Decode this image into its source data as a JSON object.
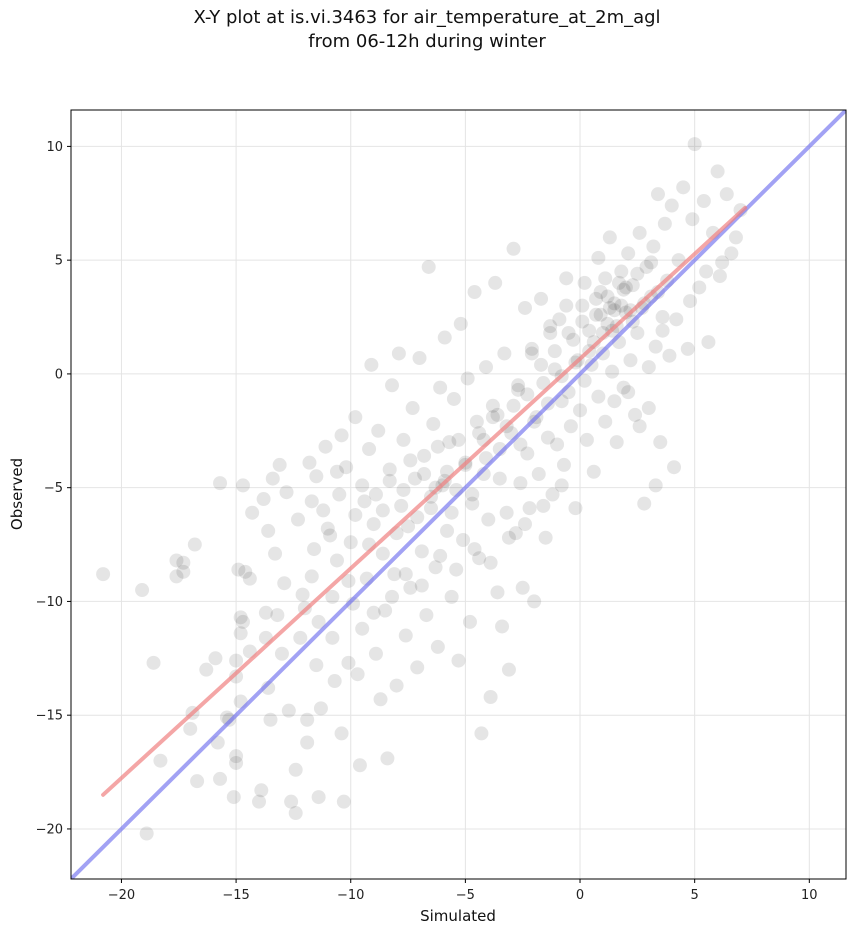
{
  "chart_data": {
    "type": "scatter",
    "title": "X-Y plot at is.vi.3463 for air_temperature_at_2m_agl",
    "subtitle": "from 06-12h during winter",
    "xlabel": "Simulated",
    "ylabel": "Observed",
    "xlim": [
      -22.2,
      11.6
    ],
    "ylim": [
      -22.2,
      11.6
    ],
    "xticks": [
      -20,
      -15,
      -10,
      -5,
      0,
      5,
      10
    ],
    "yticks": [
      -20,
      -15,
      -10,
      -5,
      0,
      5,
      10
    ],
    "xtick_labels": [
      "−20",
      "−15",
      "−10",
      "−5",
      "0",
      "5",
      "10"
    ],
    "ytick_labels": [
      "−20",
      "−15",
      "−10",
      "−5",
      "0",
      "5",
      "10"
    ],
    "grid": true,
    "point_color": "#000000",
    "point_opacity": 0.1,
    "fit_line": {
      "x": [
        -20.8,
        7.2
      ],
      "y": [
        -18.5,
        7.3
      ],
      "color": "#f08080"
    },
    "one_to_one_line": {
      "x": [
        -22.2,
        11.6
      ],
      "y": [
        -22.2,
        11.6
      ],
      "color": "#7070ee"
    },
    "points": [
      [
        -20.8,
        -8.8
      ],
      [
        -19.1,
        -9.5
      ],
      [
        -18.9,
        -20.2
      ],
      [
        -18.6,
        -12.7
      ],
      [
        -18.3,
        -17.0
      ],
      [
        -17.6,
        -8.2
      ],
      [
        -17.6,
        -8.9
      ],
      [
        -17.3,
        -8.7
      ],
      [
        -17.3,
        -8.3
      ],
      [
        -17.0,
        -15.6
      ],
      [
        -16.9,
        -14.9
      ],
      [
        -16.7,
        -17.9
      ],
      [
        -16.8,
        -7.5
      ],
      [
        -16.3,
        -13.0
      ],
      [
        -15.9,
        -12.5
      ],
      [
        -15.8,
        -16.2
      ],
      [
        -15.7,
        -17.8
      ],
      [
        -15.7,
        -4.8
      ],
      [
        -15.4,
        -15.1
      ],
      [
        -15.3,
        -15.2
      ],
      [
        -15.0,
        -12.6
      ],
      [
        -15.0,
        -17.1
      ],
      [
        -15.0,
        -16.8
      ],
      [
        -15.1,
        -18.6
      ],
      [
        -15.0,
        -13.3
      ],
      [
        -14.9,
        -8.6
      ],
      [
        -14.8,
        -10.7
      ],
      [
        -14.8,
        -11.4
      ],
      [
        -14.8,
        -14.4
      ],
      [
        -14.7,
        -10.9
      ],
      [
        -14.7,
        -4.9
      ],
      [
        -14.6,
        -8.7
      ],
      [
        -14.4,
        -9.0
      ],
      [
        -14.4,
        -12.2
      ],
      [
        -14.0,
        -18.8
      ],
      [
        -13.9,
        -18.3
      ],
      [
        -13.8,
        -5.5
      ],
      [
        -13.7,
        -10.5
      ],
      [
        -13.7,
        -11.6
      ],
      [
        -13.6,
        -13.8
      ],
      [
        -13.5,
        -15.2
      ],
      [
        -13.4,
        -4.6
      ],
      [
        -13.3,
        -7.9
      ],
      [
        -13.2,
        -10.6
      ],
      [
        -13.0,
        -12.3
      ],
      [
        -12.9,
        -9.2
      ],
      [
        -12.7,
        -14.8
      ],
      [
        -12.6,
        -18.8
      ],
      [
        -12.4,
        -17.4
      ],
      [
        -12.4,
        -19.3
      ],
      [
        -12.2,
        -11.6
      ],
      [
        -12.0,
        -10.3
      ],
      [
        -11.9,
        -15.2
      ],
      [
        -11.9,
        -16.2
      ],
      [
        -11.8,
        -3.9
      ],
      [
        -11.7,
        -8.9
      ],
      [
        -11.6,
        -7.7
      ],
      [
        -11.5,
        -4.5
      ],
      [
        -11.5,
        -12.8
      ],
      [
        -11.4,
        -18.6
      ],
      [
        -11.3,
        -14.7
      ],
      [
        -11.2,
        -6.0
      ],
      [
        -11.0,
        -6.8
      ],
      [
        -10.8,
        -9.8
      ],
      [
        -10.8,
        -11.6
      ],
      [
        -10.7,
        -13.5
      ],
      [
        -10.6,
        -8.2
      ],
      [
        -10.5,
        -5.3
      ],
      [
        -10.4,
        -15.8
      ],
      [
        -10.3,
        -18.8
      ],
      [
        -10.2,
        -4.1
      ],
      [
        -10.1,
        -12.7
      ],
      [
        -10.0,
        -7.4
      ],
      [
        -9.9,
        -10.1
      ],
      [
        -9.8,
        -1.9
      ],
      [
        -9.7,
        -13.2
      ],
      [
        -9.6,
        -17.2
      ],
      [
        -9.5,
        -11.2
      ],
      [
        -9.4,
        -5.6
      ],
      [
        -9.3,
        -9.0
      ],
      [
        -9.2,
        -3.3
      ],
      [
        -9.1,
        0.4
      ],
      [
        -9.0,
        -6.6
      ],
      [
        -8.9,
        -12.3
      ],
      [
        -8.8,
        -2.5
      ],
      [
        -8.7,
        -14.3
      ],
      [
        -8.6,
        -7.9
      ],
      [
        -8.5,
        -10.4
      ],
      [
        -8.4,
        -16.9
      ],
      [
        -8.3,
        -4.2
      ],
      [
        -8.2,
        -0.5
      ],
      [
        -8.1,
        -8.8
      ],
      [
        -8.0,
        -13.7
      ],
      [
        -7.9,
        0.9
      ],
      [
        -7.8,
        -5.8
      ],
      [
        -7.7,
        -2.9
      ],
      [
        -7.6,
        -11.5
      ],
      [
        -7.5,
        -6.7
      ],
      [
        -7.4,
        -9.4
      ],
      [
        -7.3,
        -1.5
      ],
      [
        -7.2,
        -4.6
      ],
      [
        -7.1,
        -12.9
      ],
      [
        -7.0,
        0.7
      ],
      [
        -6.9,
        -7.8
      ],
      [
        -6.8,
        -3.6
      ],
      [
        -6.7,
        -10.6
      ],
      [
        -6.6,
        4.7
      ],
      [
        -6.5,
        -5.4
      ],
      [
        -6.4,
        -2.2
      ],
      [
        -6.3,
        -8.5
      ],
      [
        -6.2,
        -12.0
      ],
      [
        -6.1,
        -0.6
      ],
      [
        -6.0,
        -4.9
      ],
      [
        -5.9,
        1.6
      ],
      [
        -5.8,
        -6.9
      ],
      [
        -5.7,
        -3.0
      ],
      [
        -5.6,
        -9.8
      ],
      [
        -5.5,
        -1.1
      ],
      [
        -5.4,
        -5.1
      ],
      [
        -5.3,
        -12.6
      ],
      [
        -5.2,
        2.2
      ],
      [
        -5.1,
        -7.3
      ],
      [
        -5.0,
        -3.9
      ],
      [
        -4.9,
        -0.2
      ],
      [
        -4.8,
        -10.9
      ],
      [
        -4.7,
        -5.7
      ],
      [
        -4.6,
        3.6
      ],
      [
        -4.5,
        -2.1
      ],
      [
        -4.4,
        -8.1
      ],
      [
        -4.3,
        -15.8
      ],
      [
        -4.2,
        -4.4
      ],
      [
        -4.1,
        0.3
      ],
      [
        -4.0,
        -6.4
      ],
      [
        -3.9,
        -14.2
      ],
      [
        -3.8,
        -1.4
      ],
      [
        -3.7,
        4.0
      ],
      [
        -3.6,
        -9.6
      ],
      [
        -3.5,
        -3.3
      ],
      [
        -3.4,
        -11.1
      ],
      [
        -3.3,
        0.9
      ],
      [
        -3.2,
        -6.1
      ],
      [
        -3.1,
        -13.0
      ],
      [
        -3.0,
        -2.6
      ],
      [
        -2.9,
        5.5
      ],
      [
        -2.8,
        -7.0
      ],
      [
        -2.7,
        -0.7
      ],
      [
        -2.6,
        -4.8
      ],
      [
        -2.5,
        -9.4
      ],
      [
        -2.4,
        2.9
      ],
      [
        -2.3,
        -3.5
      ],
      [
        -2.2,
        -5.9
      ],
      [
        -2.1,
        1.1
      ],
      [
        -2.0,
        -10.0
      ],
      [
        -1.9,
        -1.9
      ],
      [
        -1.8,
        -4.4
      ],
      [
        -1.7,
        3.3
      ],
      [
        -1.6,
        -0.4
      ],
      [
        -1.5,
        -7.2
      ],
      [
        -1.4,
        -2.8
      ],
      [
        -1.3,
        1.8
      ],
      [
        -1.2,
        -5.3
      ],
      [
        -1.1,
        0.2
      ],
      [
        -1.0,
        -3.1
      ],
      [
        -0.9,
        2.4
      ],
      [
        -0.8,
        -1.2
      ],
      [
        -0.7,
        -4.0
      ],
      [
        -0.6,
        4.2
      ],
      [
        -0.5,
        -0.8
      ],
      [
        -0.4,
        -2.3
      ],
      [
        -0.3,
        1.5
      ],
      [
        -0.2,
        -5.9
      ],
      [
        -0.1,
        0.6
      ],
      [
        0.0,
        -1.6
      ],
      [
        0.1,
        3.0
      ],
      [
        0.2,
        -0.3
      ],
      [
        0.3,
        -2.9
      ],
      [
        0.4,
        1.9
      ],
      [
        0.5,
        0.4
      ],
      [
        0.6,
        -4.3
      ],
      [
        0.7,
        2.6
      ],
      [
        0.8,
        -1.0
      ],
      [
        0.9,
        3.6
      ],
      [
        1.0,
        0.9
      ],
      [
        1.1,
        -2.1
      ],
      [
        1.2,
        2.2
      ],
      [
        1.3,
        6.0
      ],
      [
        1.4,
        0.1
      ],
      [
        1.5,
        3.1
      ],
      [
        1.6,
        -3.0
      ],
      [
        1.7,
        1.4
      ],
      [
        1.8,
        4.5
      ],
      [
        1.9,
        -0.6
      ],
      [
        2.0,
        2.7
      ],
      [
        2.1,
        5.3
      ],
      [
        2.2,
        0.6
      ],
      [
        2.3,
        3.9
      ],
      [
        2.4,
        -1.8
      ],
      [
        2.5,
        1.8
      ],
      [
        2.6,
        6.2
      ],
      [
        2.7,
        2.9
      ],
      [
        2.8,
        -5.7
      ],
      [
        2.9,
        4.7
      ],
      [
        3.0,
        0.3
      ],
      [
        3.1,
        3.4
      ],
      [
        3.2,
        5.6
      ],
      [
        3.3,
        1.2
      ],
      [
        3.4,
        7.9
      ],
      [
        3.5,
        -3.0
      ],
      [
        3.6,
        2.5
      ],
      [
        3.7,
        6.6
      ],
      [
        3.8,
        4.1
      ],
      [
        3.9,
        0.8
      ],
      [
        4.0,
        7.4
      ],
      [
        4.1,
        -4.1
      ],
      [
        4.3,
        5.0
      ],
      [
        4.5,
        8.2
      ],
      [
        4.7,
        1.1
      ],
      [
        4.9,
        6.8
      ],
      [
        5.0,
        10.1
      ],
      [
        5.2,
        3.8
      ],
      [
        5.4,
        7.6
      ],
      [
        5.6,
        1.4
      ],
      [
        5.8,
        6.2
      ],
      [
        6.0,
        8.9
      ],
      [
        6.2,
        4.9
      ],
      [
        6.4,
        7.9
      ],
      [
        6.6,
        5.3
      ],
      [
        6.8,
        6.0
      ],
      [
        7.0,
        7.2
      ],
      [
        -13.1,
        -4.0
      ],
      [
        -12.3,
        -6.4
      ],
      [
        -11.7,
        -5.6
      ],
      [
        -10.9,
        -7.1
      ],
      [
        -10.6,
        -4.3
      ],
      [
        -9.8,
        -6.2
      ],
      [
        -9.5,
        -4.9
      ],
      [
        -9.2,
        -7.5
      ],
      [
        -8.9,
        -5.3
      ],
      [
        -8.6,
        -6.0
      ],
      [
        -8.3,
        -4.7
      ],
      [
        -8.0,
        -7.0
      ],
      [
        -7.7,
        -5.1
      ],
      [
        -7.4,
        -3.8
      ],
      [
        -7.1,
        -6.3
      ],
      [
        -6.8,
        -4.4
      ],
      [
        -6.5,
        -5.9
      ],
      [
        -6.2,
        -3.2
      ],
      [
        -5.9,
        -4.7
      ],
      [
        -5.6,
        -6.1
      ],
      [
        -5.3,
        -2.9
      ],
      [
        -5.0,
        -4.0
      ],
      [
        -4.7,
        -5.3
      ],
      [
        -4.4,
        -2.6
      ],
      [
        -4.1,
        -3.7
      ],
      [
        -3.8,
        -1.9
      ],
      [
        -3.5,
        -4.6
      ],
      [
        -3.2,
        -2.3
      ],
      [
        -2.9,
        -1.4
      ],
      [
        -2.6,
        -3.1
      ],
      [
        -2.3,
        -0.9
      ],
      [
        -2.0,
        -2.1
      ],
      [
        -1.7,
        0.4
      ],
      [
        -1.4,
        -1.3
      ],
      [
        -1.1,
        1.0
      ],
      [
        -0.8,
        -0.1
      ],
      [
        -0.5,
        1.8
      ],
      [
        -0.2,
        0.5
      ],
      [
        0.1,
        2.3
      ],
      [
        0.4,
        1.0
      ],
      [
        0.7,
        3.3
      ],
      [
        1.0,
        1.8
      ],
      [
        1.3,
        2.9
      ],
      [
        1.6,
        2.1
      ],
      [
        1.9,
        3.7
      ],
      [
        2.2,
        2.8
      ],
      [
        2.5,
        4.4
      ],
      [
        2.8,
        3.1
      ],
      [
        3.1,
        4.9
      ],
      [
        3.4,
        3.6
      ],
      [
        0.9,
        2.6
      ],
      [
        1.2,
        3.4
      ],
      [
        1.5,
        2.8
      ],
      [
        1.8,
        3.0
      ],
      [
        2.0,
        3.8
      ],
      [
        1.4,
        1.9
      ],
      [
        1.7,
        4.0
      ],
      [
        2.3,
        2.3
      ],
      [
        0.6,
        1.4
      ],
      [
        1.1,
        4.2
      ],
      [
        -6.3,
        -5.0
      ],
      [
        -5.8,
        -4.3
      ],
      [
        -4.2,
        -2.9
      ],
      [
        -3.6,
        -1.8
      ],
      [
        -2.7,
        -0.5
      ],
      [
        -12.1,
        -9.7
      ],
      [
        -11.4,
        -10.9
      ],
      [
        -10.1,
        -9.1
      ],
      [
        -9.0,
        -10.5
      ],
      [
        -8.2,
        -9.8
      ],
      [
        -7.6,
        -8.8
      ],
      [
        -6.9,
        -9.3
      ],
      [
        -6.1,
        -8.0
      ],
      [
        -5.4,
        -8.6
      ],
      [
        -4.6,
        -7.7
      ],
      [
        -3.9,
        -8.3
      ],
      [
        -3.1,
        -7.2
      ],
      [
        -2.4,
        -6.6
      ],
      [
        -1.6,
        -5.8
      ],
      [
        -0.8,
        -4.9
      ],
      [
        -14.3,
        -6.1
      ],
      [
        -13.6,
        -6.9
      ],
      [
        -12.8,
        -5.2
      ],
      [
        -11.1,
        -3.2
      ],
      [
        -10.4,
        -2.7
      ],
      [
        -2.1,
        0.9
      ],
      [
        -1.3,
        2.1
      ],
      [
        -0.6,
        3.0
      ],
      [
        0.2,
        4.0
      ],
      [
        0.8,
        5.1
      ],
      [
        3.6,
        1.9
      ],
      [
        4.2,
        2.4
      ],
      [
        4.8,
        3.2
      ],
      [
        5.5,
        4.5
      ],
      [
        6.1,
        4.3
      ],
      [
        1.5,
        -1.2
      ],
      [
        2.1,
        -0.8
      ],
      [
        2.6,
        -2.3
      ],
      [
        3.0,
        -1.5
      ],
      [
        3.3,
        -4.9
      ]
    ]
  }
}
